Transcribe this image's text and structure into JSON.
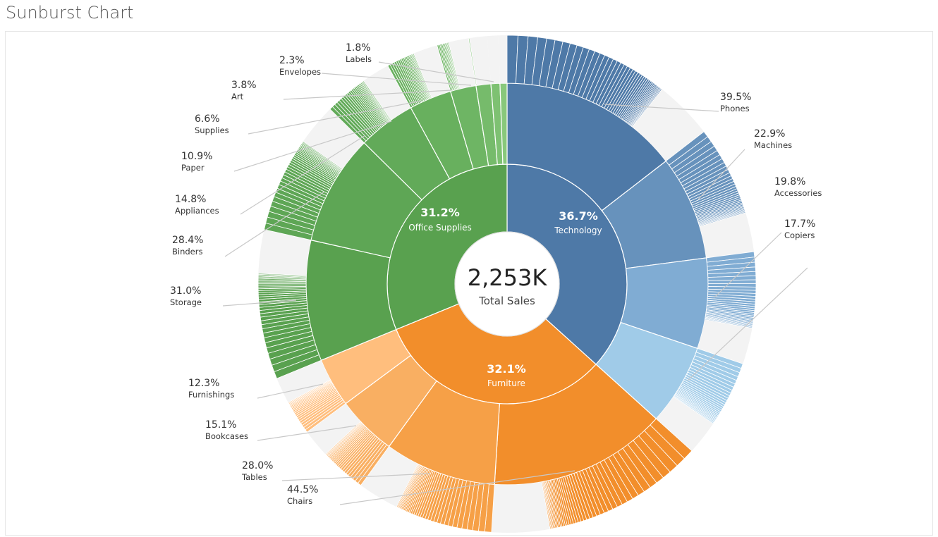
{
  "title": "Sunburst Chart",
  "center": {
    "value": "2,253K",
    "label": "Total Sales"
  },
  "chart_data": {
    "type": "sunburst",
    "title": "Sunburst Chart",
    "total": "2,253K",
    "total_label": "Total Sales",
    "categories": [
      {
        "name": "Technology",
        "pct": "36.7%",
        "share": 36.7,
        "colors": {
          "main": "#4e79a7"
        },
        "subcategories": [
          {
            "name": "Phones",
            "pct": "39.5%",
            "share": 39.5,
            "color": "#4e79a7"
          },
          {
            "name": "Machines",
            "pct": "22.9%",
            "share": 22.9,
            "color": "#6792bc"
          },
          {
            "name": "Accessories",
            "pct": "19.8%",
            "share": 19.8,
            "color": "#80acd3"
          },
          {
            "name": "Copiers",
            "pct": "17.7%",
            "share": 17.7,
            "color": "#a0cbe8"
          }
        ]
      },
      {
        "name": "Furniture",
        "pct": "32.1%",
        "share": 32.1,
        "colors": {
          "main": "#f28e2b"
        },
        "subcategories": [
          {
            "name": "Chairs",
            "pct": "44.5%",
            "share": 44.5,
            "color": "#f28e2b"
          },
          {
            "name": "Tables",
            "pct": "28.0%",
            "share": 28.0,
            "color": "#f6a047"
          },
          {
            "name": "Bookcases",
            "pct": "15.1%",
            "share": 15.1,
            "color": "#f9af62"
          },
          {
            "name": "Furnishings",
            "pct": "12.3%",
            "share": 12.3,
            "color": "#ffbe7d"
          }
        ]
      },
      {
        "name": "Office Supplies",
        "pct": "31.2%",
        "share": 31.2,
        "colors": {
          "main": "#59a14f"
        },
        "subcategories": [
          {
            "name": "Storage",
            "pct": "31.0%",
            "share": 31.0,
            "color": "#59a14f"
          },
          {
            "name": "Binders",
            "pct": "28.4%",
            "share": 28.4,
            "color": "#5ea655"
          },
          {
            "name": "Appliances",
            "pct": "14.8%",
            "share": 14.8,
            "color": "#62aa59"
          },
          {
            "name": "Paper",
            "pct": "10.9%",
            "share": 10.9,
            "color": "#68b05e"
          },
          {
            "name": "Supplies",
            "pct": "6.6%",
            "share": 6.6,
            "color": "#6eb564"
          },
          {
            "name": "Art",
            "pct": "3.8%",
            "share": 3.8,
            "color": "#76bb6b"
          },
          {
            "name": "Envelopes",
            "pct": "2.3%",
            "share": 2.3,
            "color": "#7ec172"
          },
          {
            "name": "Labels",
            "pct": "1.8%",
            "share": 1.8,
            "color": "#88c87b"
          }
        ]
      }
    ]
  }
}
